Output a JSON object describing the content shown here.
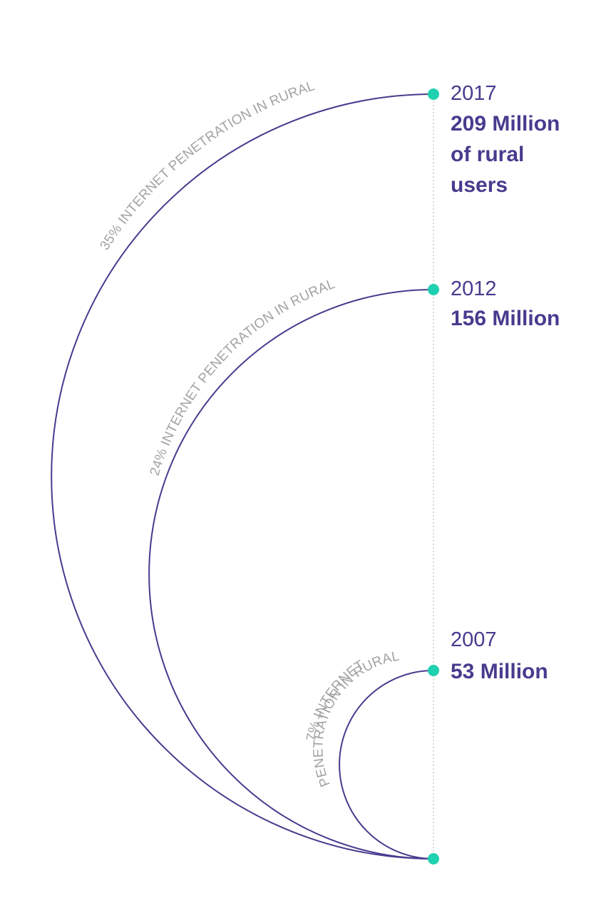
{
  "milestones": [
    {
      "year": "2017",
      "amount_lines": [
        "209 Million",
        "of rural",
        "users"
      ],
      "penetration_label": "35% INTERNET PENETRATION IN RURAL"
    },
    {
      "year": "2012",
      "amount_lines": [
        "156 Million"
      ],
      "penetration_label": "24% INTERNET PENETRATION IN RURAL"
    },
    {
      "year": "2007",
      "amount_lines": [
        "53 Million"
      ],
      "penetration_label_lines": [
        "7% INTERNET",
        "PENETRATION IN RURAL"
      ]
    }
  ],
  "colors": {
    "arc": "#4a3a8e",
    "dot": "#1fd1b0",
    "label": "#a3a3a3",
    "timeline": "#b5b5b5"
  }
}
